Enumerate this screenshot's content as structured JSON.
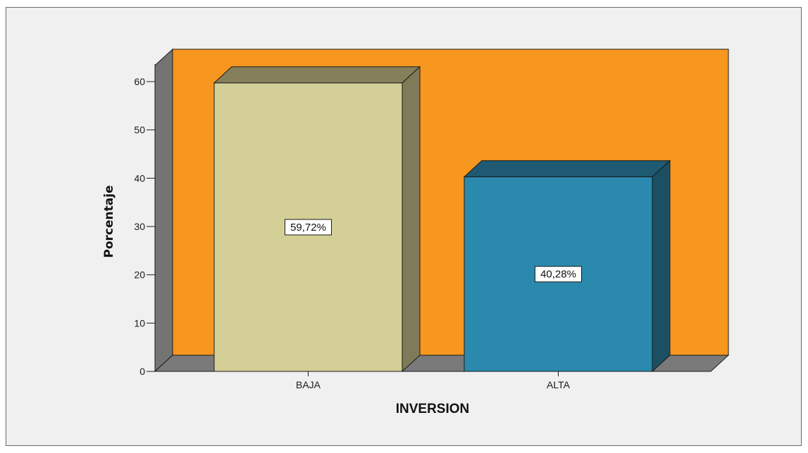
{
  "chart_data": {
    "type": "bar",
    "style": "3d",
    "categories": [
      "BAJA",
      "ALTA"
    ],
    "values": [
      59.72,
      40.28
    ],
    "data_labels": [
      "59,72%",
      "40,28%"
    ],
    "xlabel": "INVERSION",
    "ylabel": "Porcentaje",
    "ylim": [
      0,
      60
    ],
    "yticks": [
      0,
      10,
      20,
      30,
      40,
      50,
      60
    ],
    "grid": false,
    "legend": "none",
    "colors": {
      "background": "#f0f0f0",
      "plot_back_wall": "#f7971f",
      "side_wall": "#747474",
      "floor": "#7a7a7a",
      "bars": [
        {
          "front": "#d3cf96",
          "top": "#85805b",
          "side": "#7f7a58"
        },
        {
          "front": "#2a89ad",
          "top": "#1e5a72",
          "side": "#1b5064"
        }
      ]
    }
  }
}
